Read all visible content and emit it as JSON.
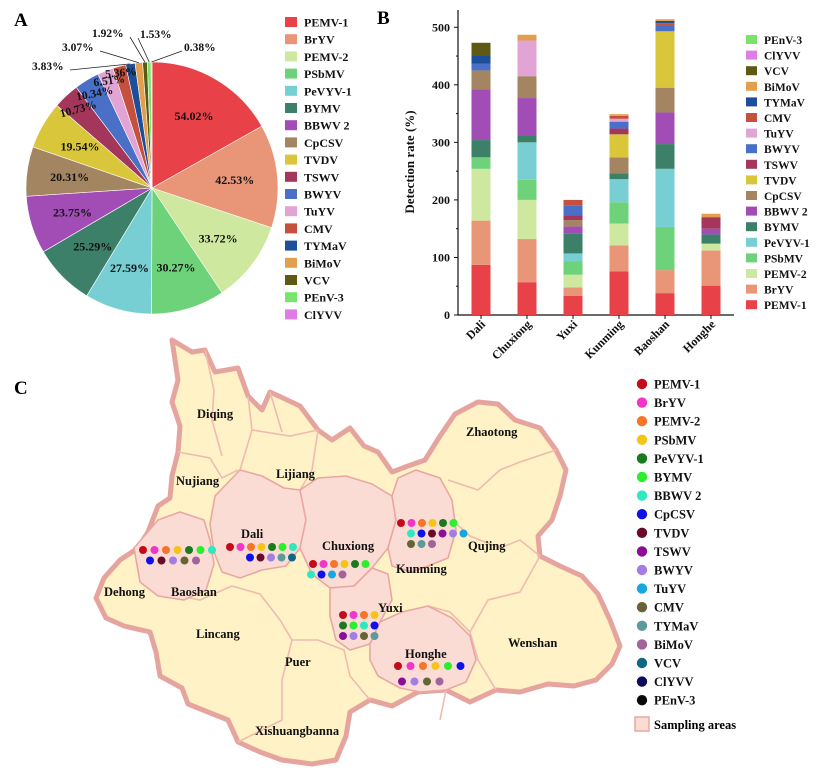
{
  "panels": {
    "a": "A",
    "b": "B",
    "c": "C"
  },
  "colors": {
    "PEMV-1": "#e84148",
    "BrYV": "#e99578",
    "PEMV-2": "#cfe8a0",
    "PSbMV": "#6dd27a",
    "PeVYV-1": "#77cfd3",
    "BYMV": "#3d8069",
    "BBWV 2": "#a24cb6",
    "CpCSV": "#a38561",
    "TVDV": "#d9c63b",
    "TSWV": "#a3365a",
    "BWYV": "#4a6fc7",
    "TuYV": "#e2a4d4",
    "CMV": "#c6503e",
    "TYMaV": "#1c4e9a",
    "BiMoV": "#e2a04e",
    "VCV": "#5e5a16",
    "PEnV-3": "#78e46a",
    "ClYVV": "#e07ce5"
  },
  "chart_data": [
    {
      "type": "pie",
      "panel": "A",
      "labels": [
        "PEMV-1",
        "BrYV",
        "PEMV-2",
        "PSbMV",
        "PeVYV-1",
        "BYMV",
        "BBWV 2",
        "CpCSV",
        "TVDV",
        "TSWV",
        "BWYV",
        "TuYV",
        "CMV",
        "TYMaV",
        "BiMoV",
        "VCV",
        "PEnV-3",
        "ClYVV"
      ],
      "values": [
        54.02,
        42.53,
        33.72,
        30.27,
        27.59,
        25.29,
        23.75,
        20.31,
        19.54,
        10.73,
        10.34,
        6.51,
        5.36,
        3.83,
        3.07,
        1.92,
        1.53,
        0.38
      ],
      "value_labels": [
        "54.02%",
        "42.53%",
        "33.72%",
        "30.27%",
        "27.59%",
        "25.29%",
        "23.75%",
        "20.31%",
        "19.54%",
        "10.73%",
        "10.34%",
        "6.51%",
        "5.36%",
        "3.83%",
        "3.07%",
        "1.92%",
        "1.53%",
        "0.38%"
      ],
      "legend": [
        "PEMV-1",
        "BrYV",
        "PEMV-2",
        "PSbMV",
        "PeVYV-1",
        "BYMV",
        "BBWV 2",
        "CpCSV",
        "TVDV",
        "TSWV",
        "BWYV",
        "TuYV",
        "CMV",
        "TYMaV",
        "BiMoV",
        "VCV",
        "PEnV-3",
        "ClYVV"
      ]
    },
    {
      "type": "bar",
      "stacked": true,
      "panel": "B",
      "categories": [
        "Dali",
        "Chuxiong",
        "Yuxi",
        "Kunming",
        "Baoshan",
        "Honghe"
      ],
      "ylabel": "Detection rate (%)",
      "ylim": [
        0,
        530
      ],
      "yticks": [
        0,
        100,
        200,
        300,
        400,
        500
      ],
      "series": [
        {
          "name": "PEMV-1",
          "values": [
            87,
            57,
            33,
            76,
            38,
            51
          ]
        },
        {
          "name": "BrYV",
          "values": [
            77,
            75,
            15,
            45,
            40,
            61
          ]
        },
        {
          "name": "PEMV-2",
          "values": [
            90,
            68,
            22,
            38,
            0,
            12
          ]
        },
        {
          "name": "PSbMV",
          "values": [
            20,
            35,
            23,
            37,
            75,
            0
          ]
        },
        {
          "name": "PeVYV-1",
          "values": [
            0,
            65,
            14,
            40,
            101,
            0
          ]
        },
        {
          "name": "BYMV",
          "values": [
            30,
            12,
            35,
            10,
            43,
            16
          ]
        },
        {
          "name": "BBWV 2",
          "values": [
            88,
            65,
            12,
            0,
            55,
            10
          ]
        },
        {
          "name": "CpCSV",
          "values": [
            33,
            38,
            11,
            28,
            43,
            0
          ]
        },
        {
          "name": "TVDV",
          "values": [
            0,
            0,
            0,
            40,
            98,
            0
          ]
        },
        {
          "name": "TSWV",
          "values": [
            0,
            0,
            8,
            10,
            0,
            20
          ]
        },
        {
          "name": "BWYV",
          "values": [
            12,
            0,
            17,
            12,
            10,
            0
          ]
        },
        {
          "name": "TuYV",
          "values": [
            0,
            62,
            0,
            5,
            0,
            0
          ]
        },
        {
          "name": "CMV",
          "values": [
            0,
            0,
            10,
            5,
            4,
            0
          ]
        },
        {
          "name": "TYMaV",
          "values": [
            14,
            0,
            0,
            0,
            4,
            0
          ]
        },
        {
          "name": "BiMoV",
          "values": [
            0,
            10,
            0,
            3,
            3,
            6
          ]
        },
        {
          "name": "VCV",
          "values": [
            22,
            0,
            0,
            0,
            0,
            0
          ]
        },
        {
          "name": "ClYVV",
          "values": [
            0,
            0,
            0,
            0,
            0,
            0
          ]
        },
        {
          "name": "PEnV-3",
          "values": [
            0,
            0,
            0,
            0,
            0,
            0
          ]
        }
      ],
      "legend": [
        "PEnV-3",
        "ClYVV",
        "VCV",
        "BiMoV",
        "TYMaV",
        "CMV",
        "TuYV",
        "BWYV",
        "TSWV",
        "TVDV",
        "CpCSV",
        "BBWV 2",
        "BYMV",
        "PeVYV-1",
        "PSbMV",
        "PEMV-2",
        "BrYV",
        "PEMV-1"
      ]
    }
  ],
  "map": {
    "regions": [
      "Diqing",
      "Nujiang",
      "Lijiang",
      "Zhaotong",
      "Dali",
      "Chuxiong",
      "Kunming",
      "Qujing",
      "Dehong",
      "Baoshan",
      "Lincang",
      "Yuxi",
      "Puer",
      "Honghe",
      "Wenshan",
      "Xishuangbanna"
    ],
    "sampling_dots": {
      "Dali": [
        "PEMV-1",
        "BrYV",
        "PEMV-2",
        "PSbMV",
        "PeVYV-1",
        "BYMV",
        "BBWV 2",
        "CpCSV",
        "TVDV",
        "BWYV",
        "TYMaV",
        "VCV"
      ],
      "Baoshan": [
        "PEMV-1",
        "BrYV",
        "PEMV-2",
        "PSbMV",
        "PeVYV-1",
        "BYMV",
        "BBWV 2",
        "CpCSV",
        "TVDV",
        "BWYV",
        "CMV",
        "BiMoV"
      ],
      "Chuxiong": [
        "PEMV-1",
        "BrYV",
        "PEMV-2",
        "PSbMV",
        "PeVYV-1",
        "BYMV",
        "BBWV 2",
        "CpCSV",
        "TuYV",
        "BiMoV"
      ],
      "Kunming": [
        "PEMV-1",
        "BrYV",
        "PEMV-2",
        "PSbMV",
        "PeVYV-1",
        "BYMV",
        "BBWV 2",
        "CpCSV",
        "TVDV",
        "TSWV",
        "BWYV",
        "TuYV",
        "CMV",
        "TYMaV",
        "BiMoV"
      ],
      "Yuxi": [
        "PEMV-1",
        "BrYV",
        "PEMV-2",
        "PSbMV",
        "PeVYV-1",
        "BYMV",
        "BBWV 2",
        "CpCSV",
        "TSWV",
        "BWYV",
        "CMV",
        "TYMaV"
      ],
      "Honghe": [
        "PEMV-1",
        "BrYV",
        "PEMV-2",
        "PSbMV",
        "BYMV",
        "CpCSV",
        "TSWV",
        "BWYV",
        "CMV",
        "BiMoV"
      ]
    },
    "legend": [
      {
        "name": "PEMV-1",
        "color": "#c50b1a"
      },
      {
        "name": "BrYV",
        "color": "#f036c8"
      },
      {
        "name": "PEMV-2",
        "color": "#f7742a"
      },
      {
        "name": "PSbMV",
        "color": "#f4c418"
      },
      {
        "name": "PeVYV-1",
        "color": "#1a7a1e"
      },
      {
        "name": "BYMV",
        "color": "#2cee2c"
      },
      {
        "name": "BBWV 2",
        "color": "#2ee8c0"
      },
      {
        "name": "CpCSV",
        "color": "#1010e8"
      },
      {
        "name": "TVDV",
        "color": "#6a0a2a"
      },
      {
        "name": "TSWV",
        "color": "#8a0e96"
      },
      {
        "name": "BWYV",
        "color": "#a27ee4"
      },
      {
        "name": "TuYV",
        "color": "#17a6e0"
      },
      {
        "name": "CMV",
        "color": "#646435"
      },
      {
        "name": "TYMaV",
        "color": "#5c9b9b"
      },
      {
        "name": "BiMoV",
        "color": "#a0649a"
      },
      {
        "name": "VCV",
        "color": "#106686"
      },
      {
        "name": "ClYVV",
        "color": "#0c0c5c"
      },
      {
        "name": "PEnV-3",
        "color": "#0a0a0a"
      }
    ],
    "sampling_label": "Sampling areas",
    "fill": "#fbdcd4",
    "base_fill": "#fff2c6",
    "border": "#e9a7a2"
  }
}
